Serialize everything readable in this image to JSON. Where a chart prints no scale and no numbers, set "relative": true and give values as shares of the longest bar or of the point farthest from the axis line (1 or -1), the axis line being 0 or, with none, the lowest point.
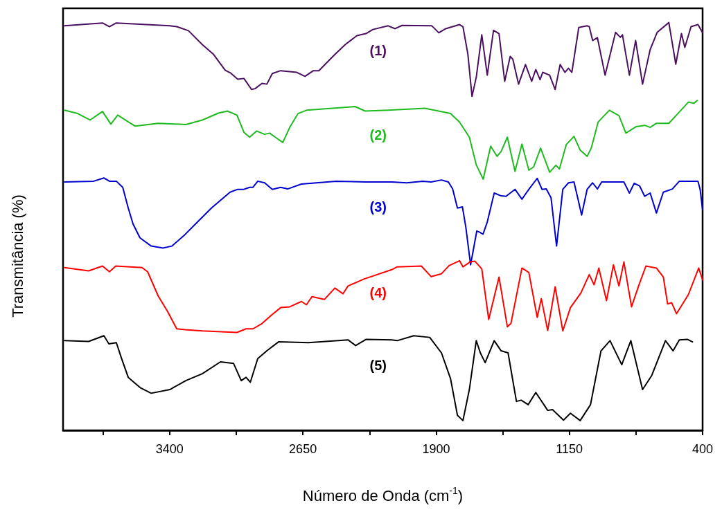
{
  "chart_data": {
    "type": "line",
    "xlabel": "Número de Onda (cm$^{-1}$)",
    "ylabel": "Transmitância (%)",
    "relative": true,
    "xlim": [
      4000,
      400
    ],
    "xticks": [
      {
        "value": 3775,
        "label": null
      },
      3400,
      {
        "value": 3025,
        "label": null
      },
      2650,
      {
        "value": 2275,
        "label": null
      },
      1900,
      {
        "value": 1525,
        "label": null
      },
      1150,
      {
        "value": 775,
        "label": null
      },
      400
    ],
    "grid": false,
    "legend": false,
    "series": [
      {
        "name": "(1)",
        "color": "#4b0f5f",
        "x": [
          3992,
          3778,
          3739,
          3700,
          3399,
          3360,
          3294,
          3216,
          3153,
          3087,
          3056,
          3017,
          2982,
          2939,
          2919,
          2880,
          2853,
          2822,
          2775,
          2685,
          2638,
          2591,
          2560,
          2474,
          2412,
          2346,
          2295,
          2256,
          2170,
          2131,
          2092,
          1924,
          1885,
          1846,
          1768,
          1749,
          1721,
          1698,
          1674,
          1643,
          1612,
          1577,
          1546,
          1514,
          1483,
          1468,
          1436,
          1397,
          1362,
          1339,
          1315,
          1300,
          1261,
          1230,
          1202,
          1175,
          1155,
          1136,
          1097,
          1050,
          1038,
          1019,
          992,
          949,
          890,
          863,
          851,
          812,
          777,
          738,
          695,
          656,
          590,
          551,
          519,
          500,
          465,
          426,
          400
        ],
        "values": [
          0.992,
          0.999,
          0.99,
          0.999,
          0.992,
          0.99,
          0.98,
          0.946,
          0.922,
          0.883,
          0.876,
          0.861,
          0.863,
          0.836,
          0.838,
          0.851,
          0.849,
          0.875,
          0.882,
          0.878,
          0.868,
          0.882,
          0.882,
          0.92,
          0.946,
          0.968,
          0.973,
          0.983,
          0.992,
          0.985,
          0.993,
          0.992,
          0.975,
          0.985,
          0.995,
          0.99,
          0.922,
          0.819,
          0.866,
          0.97,
          0.871,
          0.981,
          0.973,
          0.856,
          0.917,
          0.91,
          0.849,
          0.897,
          0.856,
          0.885,
          0.86,
          0.878,
          0.871,
          0.836,
          0.897,
          0.878,
          0.888,
          0.878,
          0.988,
          0.992,
          0.99,
          0.956,
          0.963,
          0.871,
          0.976,
          0.964,
          0.97,
          0.871,
          0.956,
          0.849,
          0.934,
          0.976,
          1.0,
          0.898,
          0.973,
          0.939,
          0.99,
          0.995,
          0.975
        ]
      },
      {
        "name": "(2)",
        "color": "#1fba1f",
        "x": [
          3992,
          3918,
          3848,
          3778,
          3731,
          3692,
          3645,
          3594,
          3465,
          3309,
          3216,
          3126,
          3075,
          3021,
          2982,
          2950,
          2911,
          2865,
          2837,
          2806,
          2763,
          2724,
          2677,
          2630,
          2357,
          2299,
          2170,
          1963,
          1819,
          1768,
          1713,
          1674,
          1635,
          1593,
          1557,
          1534,
          1499,
          1456,
          1417,
          1378,
          1351,
          1312,
          1261,
          1226,
          1206,
          1167,
          1124,
          1089,
          1050,
          1027,
          988,
          925,
          871,
          832,
          773,
          726,
          695,
          660,
          590,
          539,
          480,
          449,
          430
        ],
        "values": [
          0.785,
          0.777,
          0.761,
          0.782,
          0.751,
          0.773,
          0.76,
          0.746,
          0.753,
          0.75,
          0.761,
          0.778,
          0.783,
          0.773,
          0.731,
          0.719,
          0.734,
          0.726,
          0.729,
          0.719,
          0.706,
          0.743,
          0.777,
          0.785,
          0.794,
          0.783,
          0.785,
          0.79,
          0.777,
          0.756,
          0.719,
          0.651,
          0.616,
          0.697,
          0.672,
          0.684,
          0.719,
          0.635,
          0.702,
          0.638,
          0.646,
          0.692,
          0.633,
          0.65,
          0.641,
          0.701,
          0.721,
          0.687,
          0.672,
          0.692,
          0.756,
          0.785,
          0.772,
          0.729,
          0.745,
          0.748,
          0.743,
          0.753,
          0.753,
          0.777,
          0.805,
          0.802,
          0.809
        ]
      },
      {
        "name": "(3)",
        "color": "#0000cc",
        "x": [
          3992,
          3828,
          3770,
          3739,
          3700,
          3664,
          3633,
          3606,
          3567,
          3504,
          3438,
          3387,
          3321,
          3243,
          3165,
          3060,
          3017,
          2982,
          2950,
          2931,
          2904,
          2865,
          2822,
          2775,
          2736,
          2658,
          2463,
          2295,
          2150,
          2065,
          1975,
          1928,
          1870,
          1831,
          1807,
          1780,
          1752,
          1733,
          1706,
          1671,
          1655,
          1636,
          1612,
          1573,
          1534,
          1507,
          1456,
          1417,
          1378,
          1331,
          1304,
          1280,
          1253,
          1222,
          1187,
          1155,
          1124,
          1105,
          1081,
          1050,
          1019,
          992,
          968,
          843,
          812,
          785,
          754,
          726,
          695,
          660,
          621,
          570,
          531,
          426,
          414,
          400
        ],
        "values": [
          0.609,
          0.611,
          0.619,
          0.611,
          0.611,
          0.596,
          0.545,
          0.506,
          0.472,
          0.452,
          0.447,
          0.452,
          0.477,
          0.511,
          0.545,
          0.584,
          0.591,
          0.591,
          0.596,
          0.596,
          0.611,
          0.607,
          0.591,
          0.596,
          0.592,
          0.604,
          0.611,
          0.609,
          0.609,
          0.607,
          0.611,
          0.609,
          0.614,
          0.609,
          0.592,
          0.545,
          0.548,
          0.499,
          0.406,
          0.489,
          0.486,
          0.481,
          0.511,
          0.582,
          0.575,
          0.574,
          0.591,
          0.567,
          0.591,
          0.618,
          0.591,
          0.592,
          0.57,
          0.452,
          0.591,
          0.607,
          0.609,
          0.574,
          0.528,
          0.591,
          0.607,
          0.592,
          0.609,
          0.609,
          0.582,
          0.606,
          0.599,
          0.574,
          0.582,
          0.533,
          0.584,
          0.592,
          0.611,
          0.611,
          0.591,
          0.541
        ]
      },
      {
        "name": "(4)",
        "color": "#ff0000",
        "x": [
          3992,
          3856,
          3778,
          3739,
          3703,
          3555,
          3524,
          3465,
          3411,
          3360,
          3313,
          3216,
          3021,
          2970,
          2931,
          2880,
          2826,
          2775,
          2724,
          2658,
          2630,
          2599,
          2529,
          2470,
          2424,
          2396,
          2307,
          2150,
          2119,
          1983,
          1928,
          1870,
          1827,
          1768,
          1749,
          1709,
          1682,
          1643,
          1604,
          1546,
          1499,
          1479,
          1417,
          1378,
          1331,
          1308,
          1272,
          1230,
          1187,
          1144,
          1085,
          1038,
          1011,
          984,
          941,
          902,
          871,
          843,
          800,
          758,
          719,
          660,
          621,
          597,
          574,
          547,
          480,
          422,
          400
        ],
        "values": [
          0.399,
          0.391,
          0.403,
          0.389,
          0.403,
          0.399,
          0.389,
          0.33,
          0.291,
          0.249,
          0.247,
          0.244,
          0.24,
          0.249,
          0.249,
          0.262,
          0.283,
          0.301,
          0.303,
          0.316,
          0.308,
          0.328,
          0.321,
          0.349,
          0.335,
          0.354,
          0.371,
          0.394,
          0.401,
          0.403,
          0.377,
          0.384,
          0.404,
          0.416,
          0.401,
          0.413,
          0.415,
          0.396,
          0.272,
          0.376,
          0.254,
          0.262,
          0.398,
          0.387,
          0.277,
          0.323,
          0.245,
          0.352,
          0.244,
          0.301,
          0.337,
          0.382,
          0.357,
          0.398,
          0.318,
          0.406,
          0.354,
          0.413,
          0.303,
          0.357,
          0.403,
          0.398,
          0.376,
          0.31,
          0.313,
          0.286,
          0.333,
          0.398,
          0.369
        ]
      },
      {
        "name": "(5)",
        "color": "#000000",
        "x": [
          3992,
          3856,
          3770,
          3742,
          3700,
          3672,
          3633,
          3567,
          3504,
          3399,
          3309,
          3216,
          3114,
          3040,
          2997,
          2970,
          2946,
          2904,
          2853,
          2787,
          2619,
          2396,
          2353,
          2295,
          2150,
          2119,
          2026,
          1936,
          1870,
          1819,
          1780,
          1749,
          1713,
          1674,
          1651,
          1624,
          1573,
          1534,
          1495,
          1448,
          1421,
          1382,
          1339,
          1272,
          1245,
          1183,
          1144,
          1089,
          1031,
          972,
          921,
          855,
          804,
          738,
          687,
          609,
          566,
          531,
          484,
          457
        ],
        "values": [
          0.22,
          0.218,
          0.232,
          0.212,
          0.215,
          0.178,
          0.13,
          0.105,
          0.091,
          0.1,
          0.122,
          0.139,
          0.168,
          0.164,
          0.122,
          0.13,
          0.118,
          0.176,
          0.195,
          0.217,
          0.215,
          0.222,
          0.208,
          0.223,
          0.222,
          0.22,
          0.232,
          0.228,
          0.19,
          0.127,
          0.037,
          0.024,
          0.1,
          0.22,
          0.19,
          0.166,
          0.22,
          0.195,
          0.19,
          0.071,
          0.074,
          0.063,
          0.093,
          0.049,
          0.051,
          0.025,
          0.042,
          0.024,
          0.063,
          0.195,
          0.22,
          0.161,
          0.22,
          0.1,
          0.134,
          0.22,
          0.195,
          0.222,
          0.223,
          0.217
        ]
      }
    ]
  }
}
